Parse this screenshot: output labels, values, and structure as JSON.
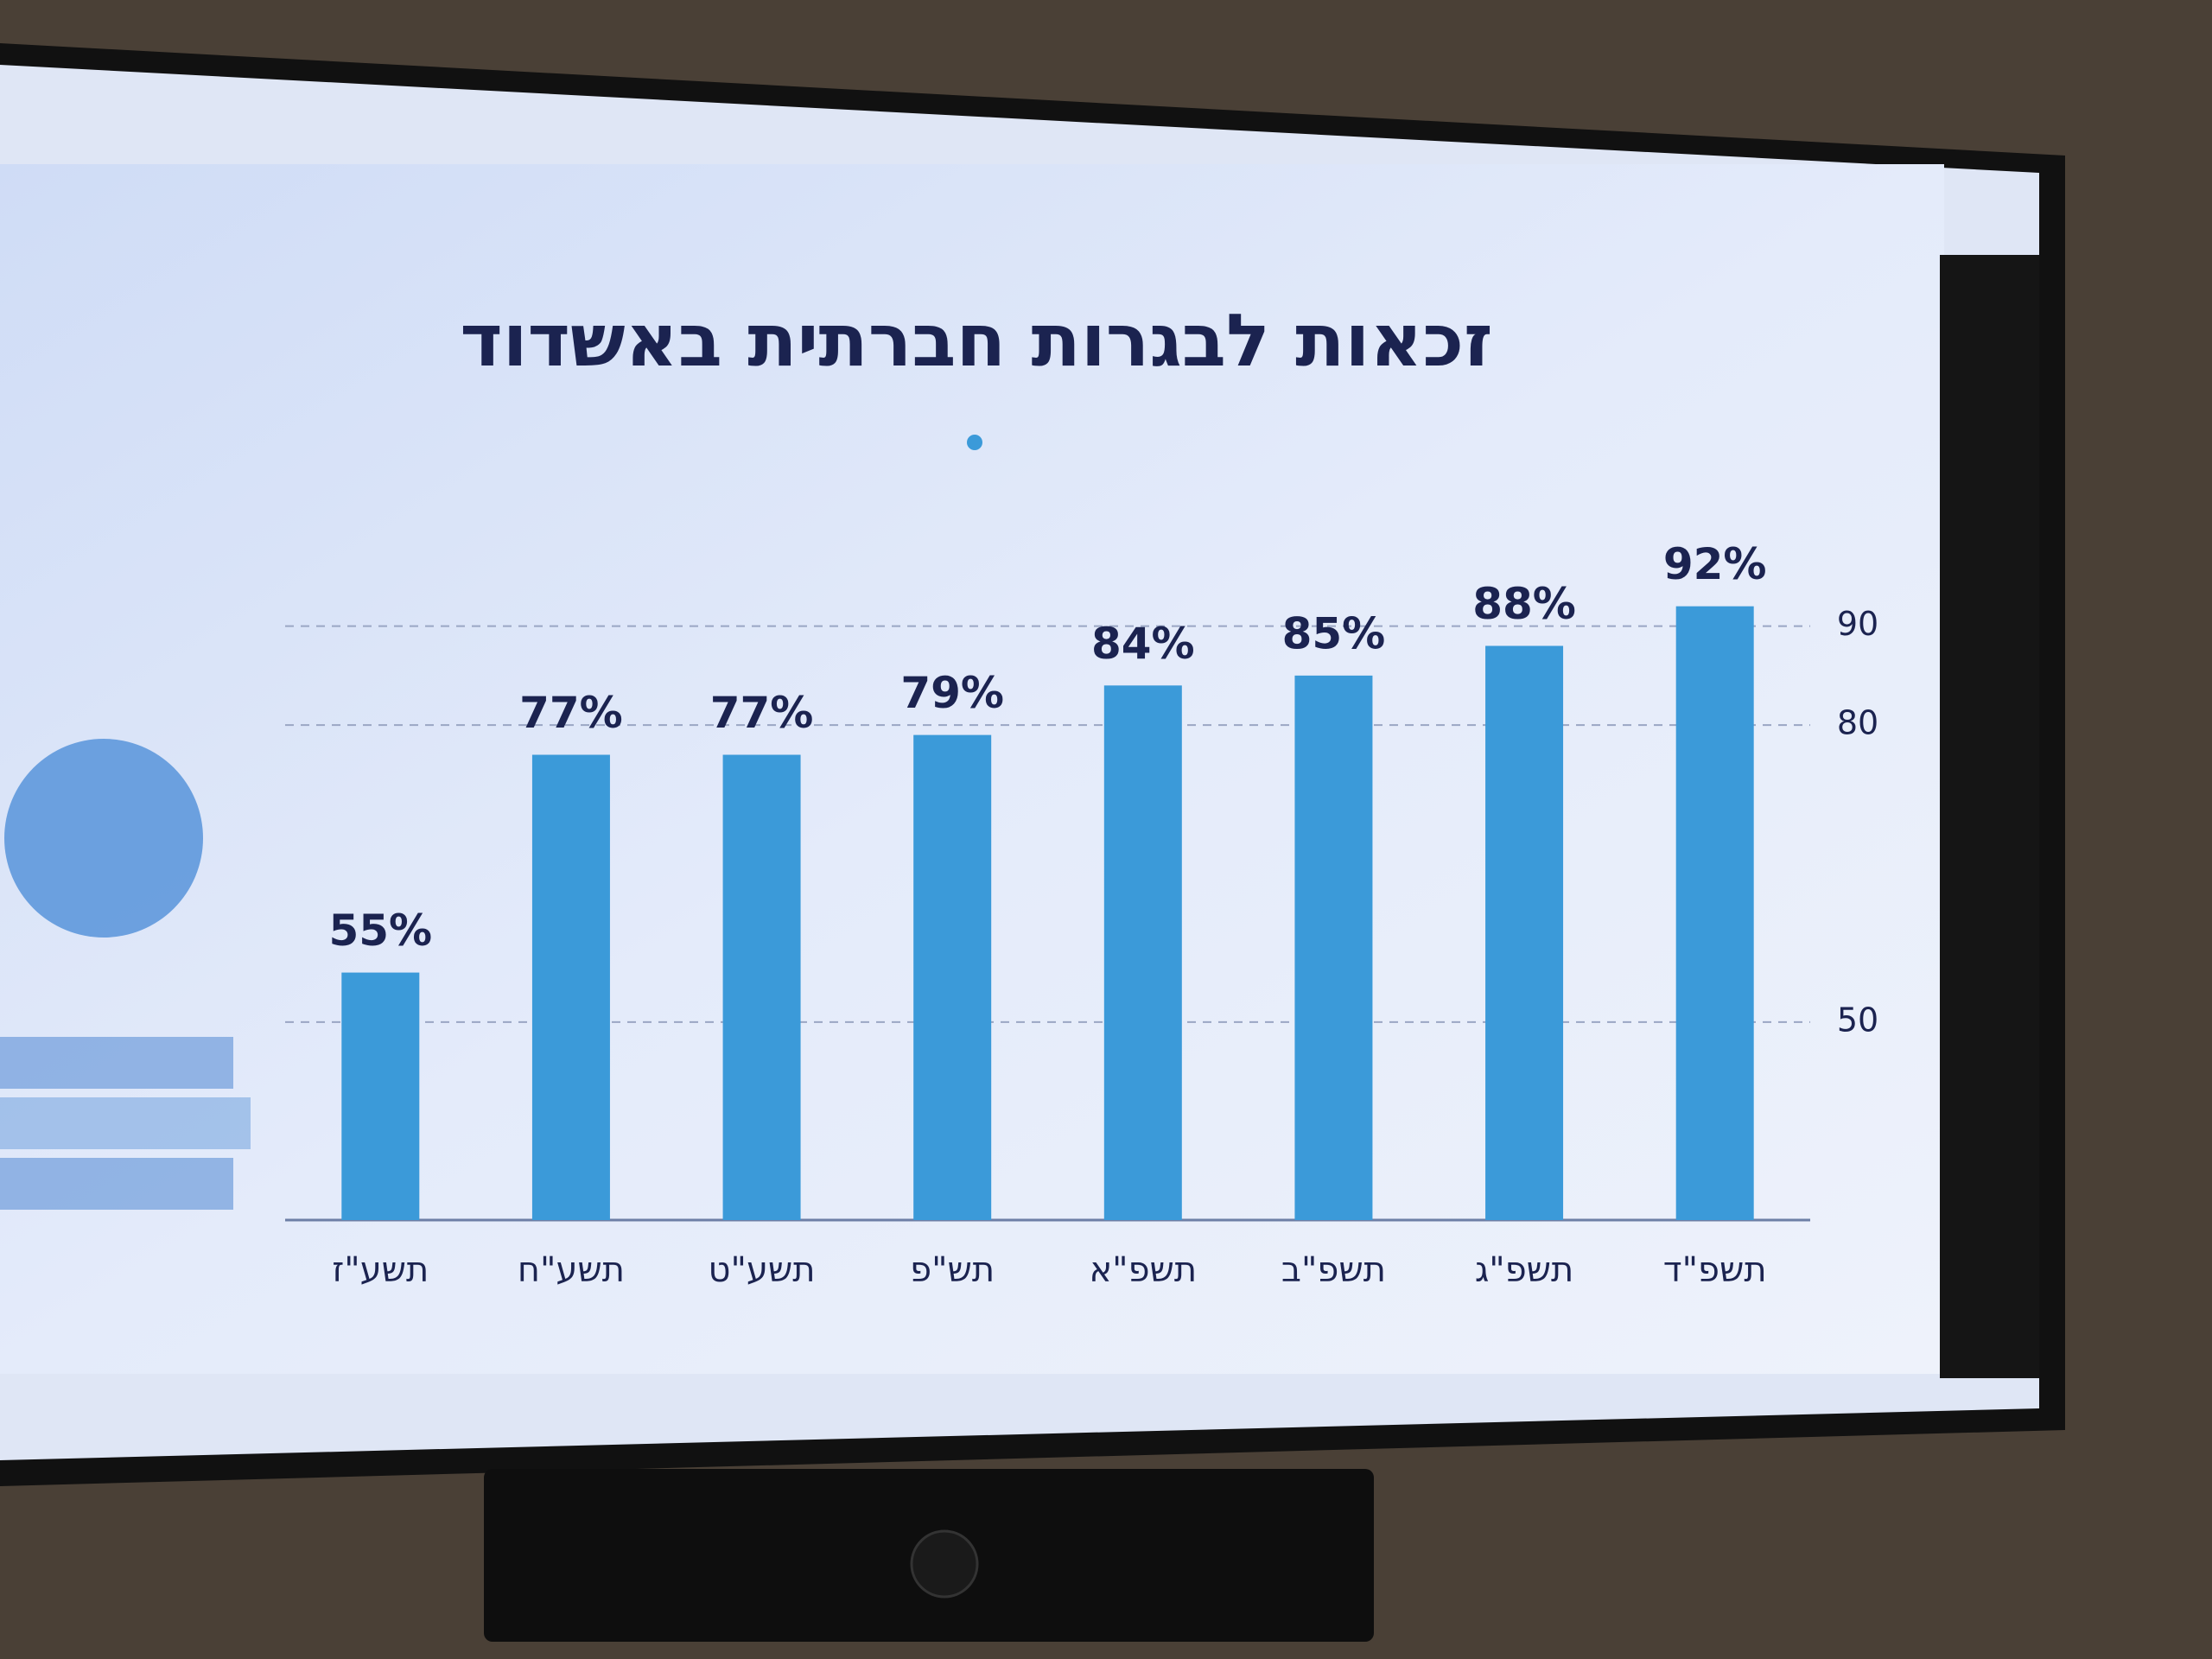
{
  "chart_data": {
    "type": "bar",
    "title": "זכאות לבגרות חברתית באשדוד",
    "categories": [
      "תשע\"ז",
      "תשע\"ח",
      "תשע\"ט",
      "תש\"פ",
      "תשפ\"א",
      "תשפ\"ב",
      "תשפ\"ג",
      "תשפ\"ד"
    ],
    "values": [
      55,
      77,
      77,
      79,
      84,
      85,
      88,
      92
    ],
    "value_labels": [
      "55%",
      "77%",
      "77%",
      "79%",
      "84%",
      "85%",
      "88%",
      "92%"
    ],
    "color": "#3b9ad9",
    "ylim": [
      30,
      100
    ],
    "yticks": [
      50,
      80,
      90
    ],
    "grid": true
  }
}
